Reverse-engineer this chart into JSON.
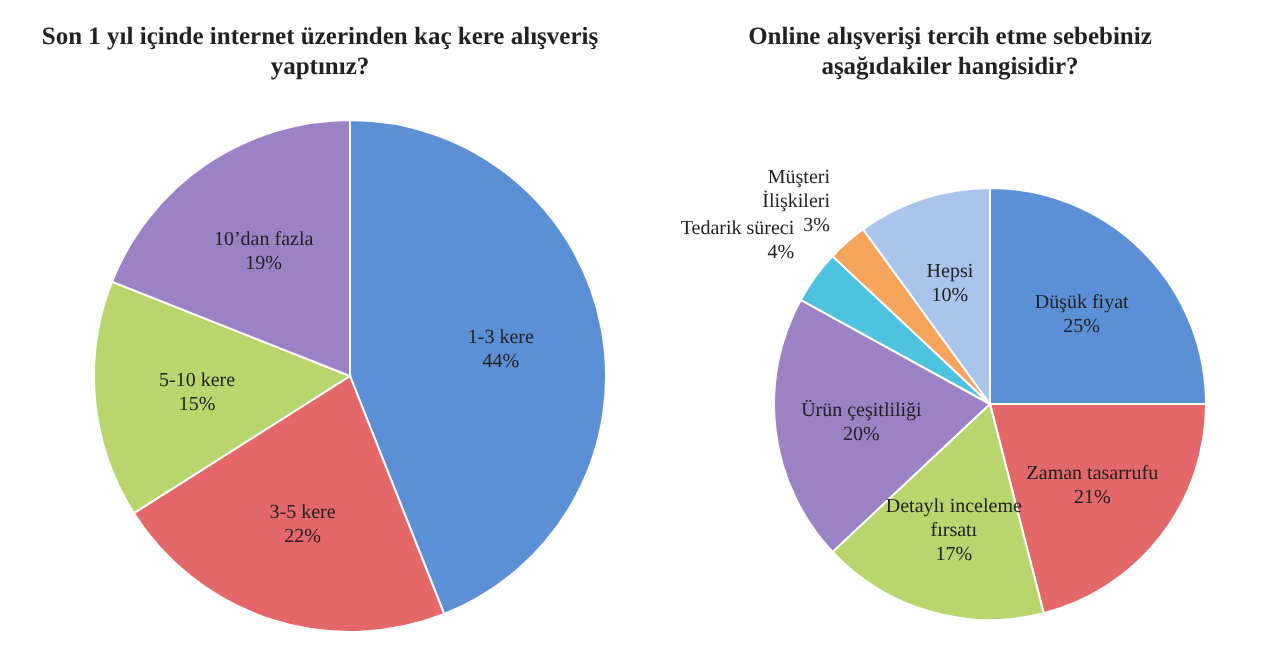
{
  "chart_data": [
    {
      "type": "pie",
      "title": "Son 1 yıl içinde internet üzerinden kaç kere alışveriş yaptınız?",
      "categories": [
        "1-3 kere",
        "3-5 kere",
        "5-10 kere",
        "10’dan fazla"
      ],
      "values": [
        44,
        22,
        15,
        19
      ],
      "colors": [
        "#5b8fd6",
        "#e4676a",
        "#b8d56e",
        "#9b82c4"
      ],
      "value_labels": [
        "44%",
        "22%",
        "15%",
        "19%"
      ]
    },
    {
      "type": "pie",
      "title": "Online alışverişi tercih etme sebebiniz aşağıdakiler hangisidir?",
      "categories": [
        "Düşük fiyat",
        "Zaman tasarrufu",
        "Detaylı inceleme fırsatı",
        "Ürün çeşitliliği",
        "Tedarik süreci",
        "Müşteri İlişkileri",
        "Hepsi"
      ],
      "values": [
        25,
        21,
        17,
        20,
        4,
        3,
        10
      ],
      "colors": [
        "#5b8fd6",
        "#e4676a",
        "#b8d56e",
        "#9b82c4",
        "#4ec3e0",
        "#f5a45c",
        "#a9c5ec"
      ],
      "value_labels": [
        "25%",
        "21%",
        "17%",
        "20%",
        "4%",
        "3%",
        "10%"
      ]
    }
  ]
}
